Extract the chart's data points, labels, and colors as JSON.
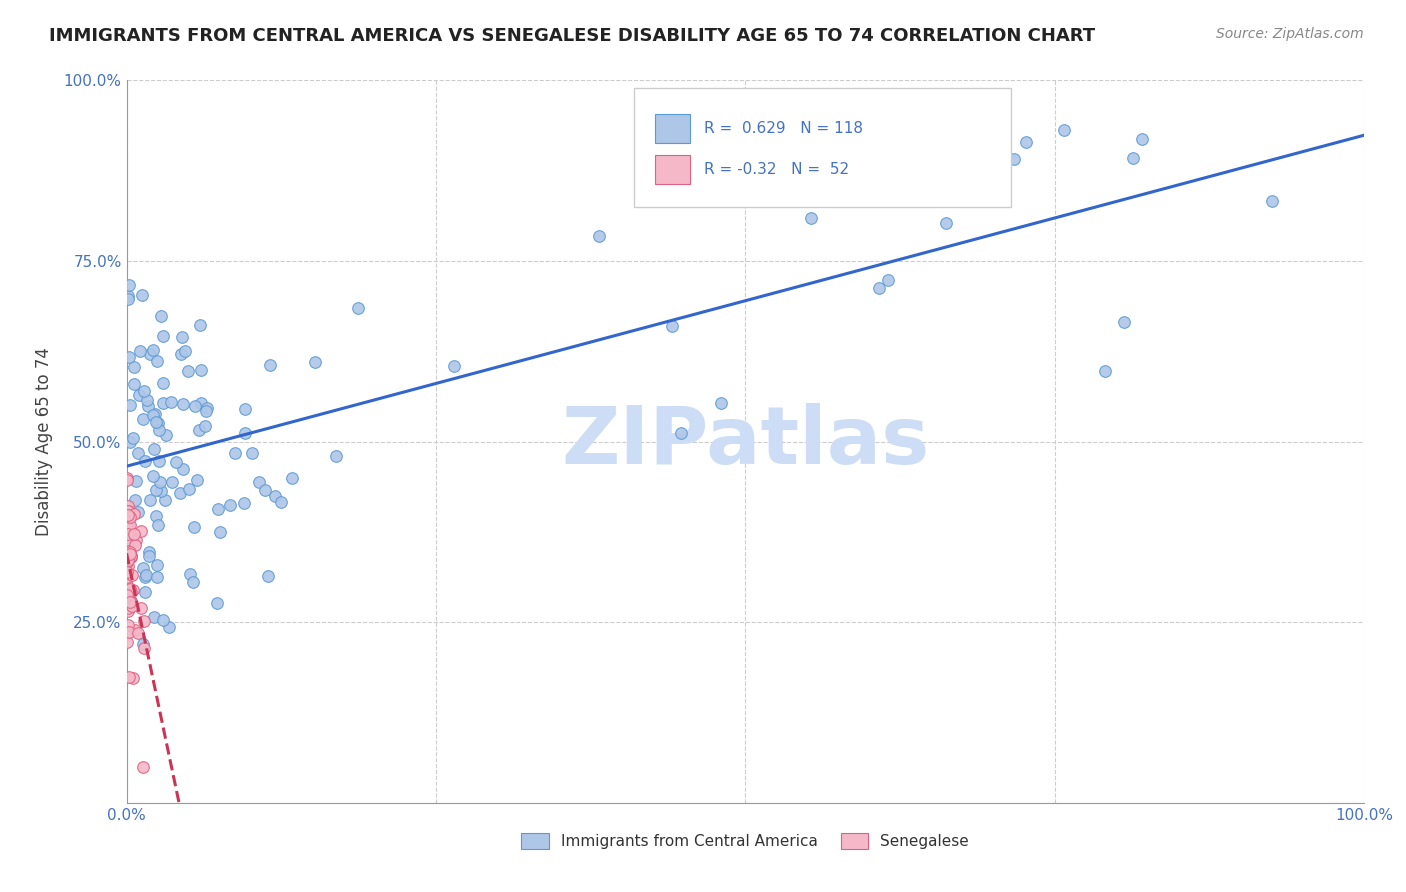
{
  "title": "IMMIGRANTS FROM CENTRAL AMERICA VS SENEGALESE DISABILITY AGE 65 TO 74 CORRELATION CHART",
  "source": "Source: ZipAtlas.com",
  "ylabel": "Disability Age 65 to 74",
  "xlim": [
    0,
    1.0
  ],
  "ylim": [
    0,
    1.0
  ],
  "xtick_positions": [
    0.0,
    0.25,
    0.5,
    0.75,
    1.0
  ],
  "xticklabels": [
    "0.0%",
    "",
    "",
    "",
    "100.0%"
  ],
  "ytick_positions": [
    0.0,
    0.25,
    0.5,
    0.75,
    1.0
  ],
  "yticklabels": [
    "",
    "25.0%",
    "50.0%",
    "75.0%",
    "100.0%"
  ],
  "blue_R": 0.629,
  "blue_N": 118,
  "pink_R": -0.32,
  "pink_N": 52,
  "blue_color": "#aec6e8",
  "blue_edge": "#5b9bd5",
  "pink_color": "#f4b8c8",
  "pink_edge": "#e06080",
  "blue_line_color": "#3366cc",
  "pink_line_color": "#cc3355",
  "pink_line_dash": "dashed",
  "watermark_text": "ZIPatlas",
  "watermark_color": "#ccddf5",
  "legend_blue_label": "Immigrants from Central America",
  "legend_pink_label": "Senegalese",
  "title_fontsize": 13,
  "source_fontsize": 10,
  "tick_fontsize": 11,
  "legend_fontsize": 11,
  "ylabel_fontsize": 12,
  "watermark_fontsize": 58,
  "grid_color": "#cccccc",
  "grid_style": "--",
  "grid_lw": 0.8,
  "scatter_s": 70,
  "scatter_lw": 0.8,
  "scatter_alpha": 0.9,
  "line_lw": 2.2
}
